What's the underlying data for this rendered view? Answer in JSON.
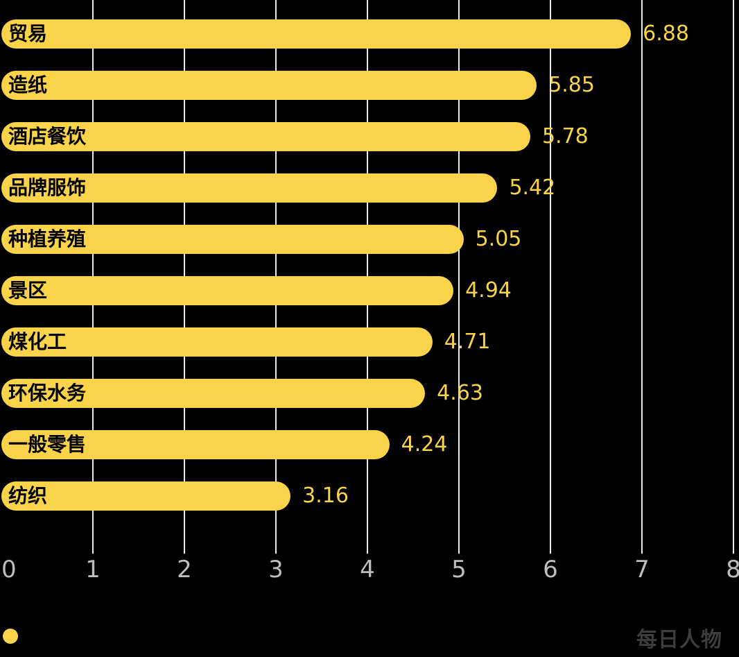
{
  "chart_data": {
    "type": "bar",
    "orientation": "horizontal",
    "title": "",
    "xlabel": "",
    "ylabel": "",
    "categories": [
      "贸易",
      "造纸",
      "酒店餐饮",
      "品牌服饰",
      "种植养殖",
      "景区",
      "煤化工",
      "环保水务",
      "一般零售",
      "纺织"
    ],
    "values": [
      6.88,
      5.85,
      5.78,
      5.42,
      5.05,
      4.94,
      4.71,
      4.63,
      4.24,
      3.16
    ],
    "value_labels": [
      "6.88",
      "5.85",
      "5.78",
      "5.42",
      "5.05",
      "4.94",
      "4.71",
      "4.63",
      "4.24",
      "3.16"
    ],
    "xlim": [
      0,
      8
    ],
    "x_ticks": [
      "0",
      "1",
      "2",
      "3",
      "4",
      "5",
      "6",
      "7",
      "8"
    ],
    "grid": "vertical-gridlines-on",
    "legend": "none",
    "colors": {
      "background": "#000000",
      "bar": "#F9D349",
      "bar_label": "#000000",
      "value_label": "#F9D349",
      "tick_label": "#BEBEBE",
      "gridline": "rgba(255,255,255,0.92)"
    }
  },
  "footer": {
    "brand": "每日人物",
    "brand_color": "#3C3C3C",
    "dot_color": "#F9D349"
  }
}
